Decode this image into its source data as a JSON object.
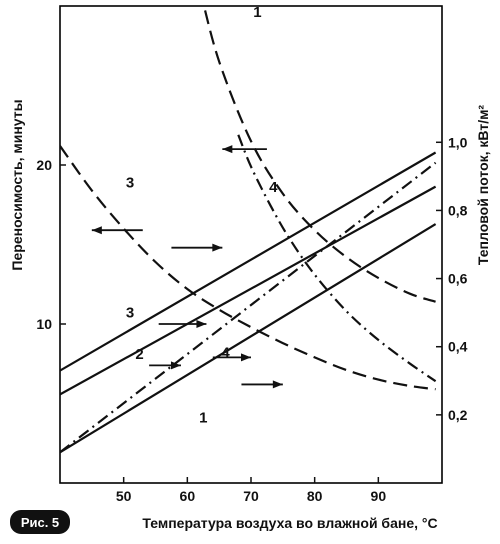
{
  "chart_data": {
    "type": "line",
    "title": "",
    "figure_label": "Рис. 5",
    "xlabel": "Температура воздуха во влажной бане, °С",
    "ylabel_left": "Переносимость, минуты",
    "ylabel_right": "Тепловой поток, кВт/м²",
    "xlim": [
      40,
      100
    ],
    "ylim_left": [
      0,
      30
    ],
    "ylim_right": [
      0,
      1.4
    ],
    "x_ticks": [
      50,
      60,
      70,
      80,
      90
    ],
    "y_left_ticks": [
      10,
      20
    ],
    "y_right_ticks": [
      "0,2",
      "0,4",
      "0,6",
      "0,8",
      "1,0"
    ],
    "grid": false,
    "series": [
      {
        "name": "1",
        "axis": "left",
        "style": "dashed",
        "x": [
          62,
          65,
          70,
          75,
          80,
          85,
          90,
          95,
          99
        ],
        "y": [
          31,
          26.5,
          21.5,
          18.2,
          15.9,
          14.2,
          12.9,
          11.9,
          11.4
        ]
      },
      {
        "name": "3",
        "axis": "left",
        "style": "dashed",
        "x": [
          40,
          45,
          50,
          55,
          60,
          65,
          70,
          75,
          80,
          85,
          90,
          95,
          99
        ],
        "y": [
          21.2,
          18.4,
          16,
          13.9,
          12.2,
          10.9,
          9.8,
          8.8,
          7.9,
          7.1,
          6.5,
          6.1,
          5.9
        ]
      },
      {
        "name": "4",
        "axis": "left",
        "style": "dashdot",
        "x": [
          68,
          70,
          73,
          76,
          80,
          85,
          90,
          95,
          99
        ],
        "y": [
          21.9,
          19.9,
          17.5,
          15.4,
          13.1,
          10.8,
          9,
          7.5,
          6.4
        ]
      },
      {
        "name": "1",
        "axis": "right",
        "style": "solid",
        "x": [
          40,
          99
        ],
        "y": [
          0.09,
          0.76
        ]
      },
      {
        "name": "2",
        "axis": "right",
        "style": "solid",
        "x": [
          40,
          99
        ],
        "y": [
          0.26,
          0.87
        ]
      },
      {
        "name": "3",
        "axis": "right",
        "style": "solid",
        "x": [
          40,
          99
        ],
        "y": [
          0.33,
          0.97
        ]
      },
      {
        "name": "4",
        "axis": "right",
        "style": "dashdot",
        "x": [
          40,
          99
        ],
        "y": [
          0.09,
          0.94
        ]
      }
    ],
    "curve_labels": [
      {
        "text": "1",
        "x": 71,
        "y": 29.3
      },
      {
        "text": "3",
        "x": 51,
        "y": 18.6
      },
      {
        "text": "4",
        "x": 73.5,
        "y": 18.3
      },
      {
        "text": "3",
        "x": 51,
        "y": 10.4
      },
      {
        "text": "2",
        "x": 52.5,
        "y": 7.8
      },
      {
        "text": "4",
        "x": 66,
        "y": 7.9
      },
      {
        "text": "1",
        "x": 62.5,
        "y": 3.8
      }
    ],
    "arrows": [
      {
        "dir": "left",
        "x": 68,
        "y": 32.7,
        "len": 7
      },
      {
        "dir": "left",
        "x": 72.5,
        "y": 21,
        "len": 7
      },
      {
        "dir": "left",
        "x": 53,
        "y": 15.9,
        "len": 8
      },
      {
        "dir": "right",
        "x": 57.5,
        "y": 14.8,
        "len": 8
      },
      {
        "dir": "right",
        "x": 55.5,
        "y": 10,
        "len": 7.5
      },
      {
        "dir": "right",
        "x": 54,
        "y": 7.4,
        "len": 5
      },
      {
        "dir": "right",
        "x": 64,
        "y": 7.9,
        "len": 6
      },
      {
        "dir": "right",
        "x": 68.5,
        "y": 6.2,
        "len": 6.5
      }
    ]
  }
}
